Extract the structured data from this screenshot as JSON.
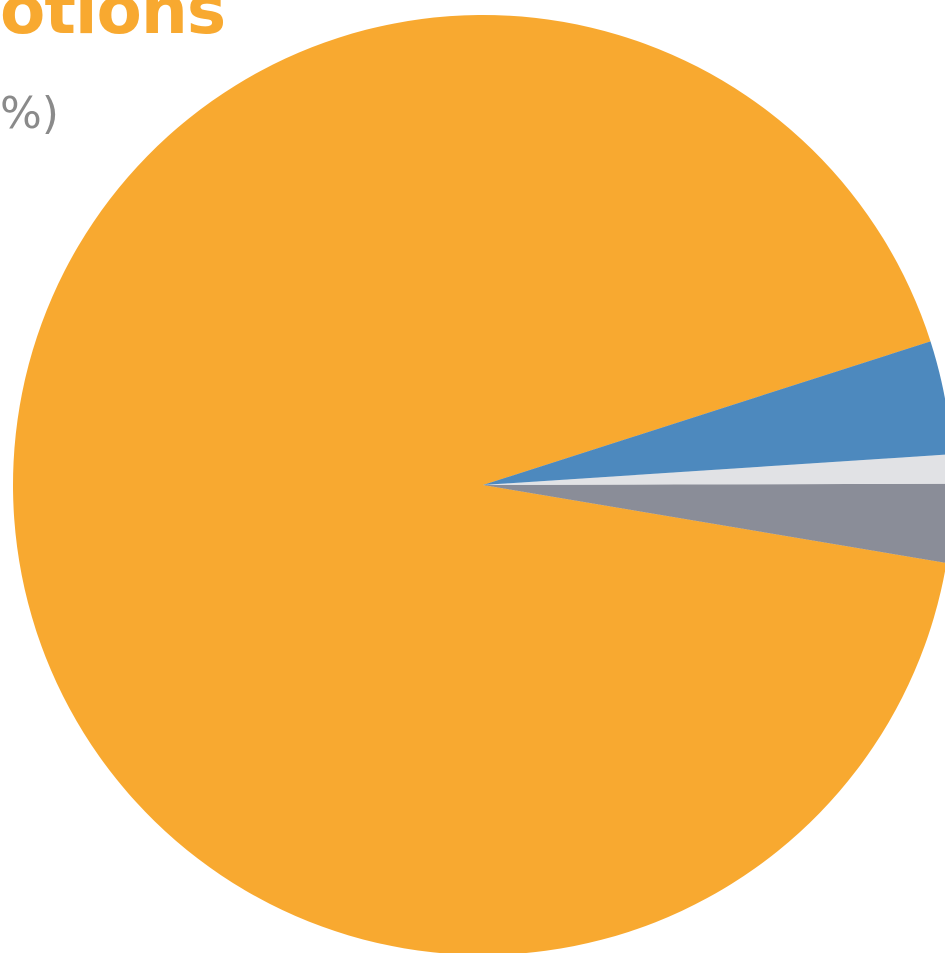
{
  "header": {
    "title": "otions",
    "subtitle": "%)"
  },
  "chart_data": {
    "type": "pie",
    "title": "otions",
    "subtitle": "%)",
    "slices": [
      {
        "value": 92.4,
        "color": "#f8a930"
      },
      {
        "value": 2.7,
        "color": "#8a8d98"
      },
      {
        "value": 1.0,
        "color": "#e1e2e5"
      },
      {
        "value": 3.9,
        "color": "#4d89be"
      }
    ],
    "start_angle_deg": -17.8,
    "direction": "counterclockwise",
    "legend": "none"
  }
}
